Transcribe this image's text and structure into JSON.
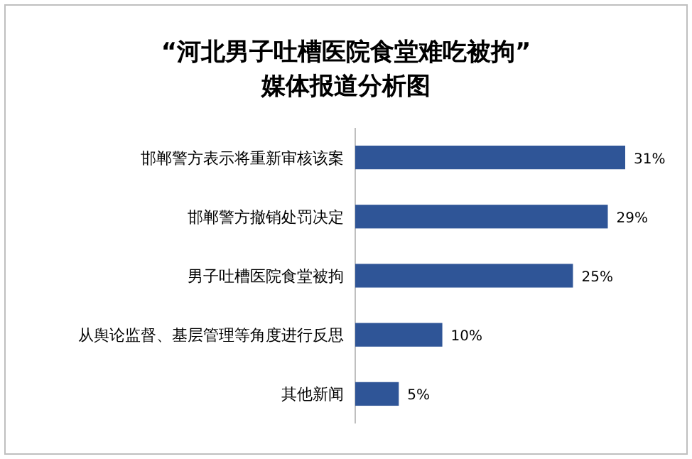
{
  "chart_data": {
    "type": "bar",
    "orientation": "horizontal",
    "title": "“河北男子吐槽医院食堂难吃被拘”\n媒体报道分析图",
    "categories": [
      "邯郸警方表示将重新审核该案",
      "邯郸警方撤销处罚决定",
      "男子吐槽医院食堂被拘",
      "从舆论监督、基层管理等角度进行反思",
      "其他新闻"
    ],
    "values": [
      31,
      29,
      25,
      10,
      5
    ],
    "value_labels": [
      "31%",
      "29%",
      "25%",
      "10%",
      "5%"
    ],
    "color": "#2f5597",
    "grid": false,
    "legend": false
  }
}
